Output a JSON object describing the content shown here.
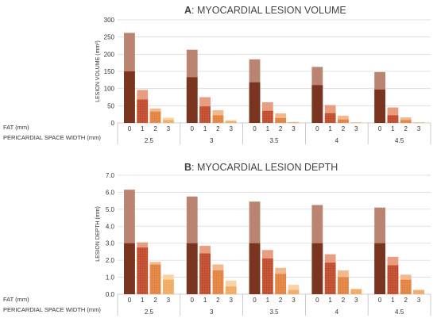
{
  "colors": {
    "total_dark": "#7a3520",
    "total_light": "#b98572",
    "fat1_dark": "#c04a2a",
    "fat1_light": "#e89c80",
    "fat2_dark": "#e3823f",
    "fat2_light": "#f2b98e",
    "fat3_dark": "#f1a962",
    "fat3_light": "#f8d3a8",
    "grid": "#d9d9d9",
    "axis": "#bfbfbf"
  },
  "chart_data": [
    {
      "type": "bar",
      "title_letter": "A",
      "title_text": ": MYOCARDIAL LESION VOLUME",
      "ylabel": "LESION VOLUME (mm³)",
      "ylim": [
        0,
        300
      ],
      "yticks": [
        "0",
        "50",
        "100",
        "150",
        "200",
        "250",
        "300"
      ],
      "row_labels": {
        "fat": "FAT (mm)",
        "width": "PERICARDIAL SPACE WIDTH (mm)"
      },
      "groups": [
        "2.5",
        "3",
        "3.5",
        "4",
        "4.5"
      ],
      "bar_labels": [
        "0",
        "1",
        "2",
        "3"
      ],
      "values_total": [
        [
          262,
          96,
          42,
          15
        ],
        [
          213,
          75,
          37,
          8
        ],
        [
          185,
          60,
          28,
          3
        ],
        [
          163,
          52,
          21,
          2
        ],
        [
          148,
          45,
          16,
          2
        ]
      ],
      "values_dark": [
        [
          150,
          68,
          33,
          8
        ],
        [
          133,
          48,
          22,
          5
        ],
        [
          118,
          35,
          14,
          2
        ],
        [
          110,
          28,
          10,
          1
        ],
        [
          97,
          22,
          8,
          1
        ]
      ]
    },
    {
      "type": "bar",
      "title_letter": "B",
      "title_text": ": MYOCARDIAL LESION DEPTH",
      "ylabel": "LESION DEPTH (mm)",
      "ylim": [
        0,
        7
      ],
      "yticks": [
        "0.0",
        "1.0",
        "2.0",
        "3.0",
        "4.0",
        "5.0",
        "6.0",
        "7.0"
      ],
      "row_labels": {
        "fat": "FAT (mm)",
        "width": "PERICARDIAL SPACE WIDTH (mm)"
      },
      "groups": [
        "2.5",
        "3",
        "3.5",
        "4",
        "4.5"
      ],
      "bar_labels": [
        "0",
        "1",
        "2",
        "3"
      ],
      "values_total": [
        [
          6.15,
          3.05,
          1.9,
          1.15
        ],
        [
          5.75,
          2.85,
          1.75,
          0.8
        ],
        [
          5.45,
          2.6,
          1.55,
          0.55
        ],
        [
          5.25,
          2.35,
          1.4,
          0.3
        ],
        [
          5.1,
          2.2,
          1.15,
          0.25
        ]
      ],
      "values_dark": [
        [
          3.0,
          2.75,
          1.75,
          0.85
        ],
        [
          3.0,
          2.4,
          1.4,
          0.45
        ],
        [
          3.0,
          2.1,
          1.2,
          0.25
        ],
        [
          3.0,
          1.85,
          1.0,
          0.3
        ],
        [
          3.0,
          1.7,
          0.85,
          0.25
        ]
      ]
    }
  ]
}
